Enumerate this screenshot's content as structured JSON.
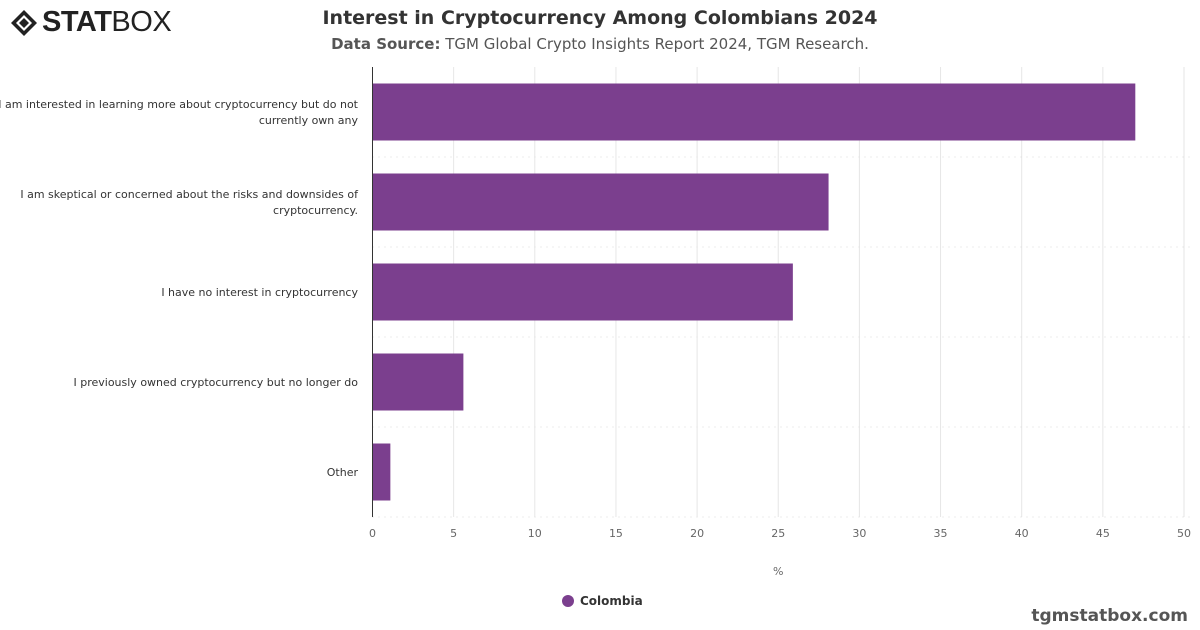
{
  "logo": {
    "text_bold": "STAT",
    "text_light": "BOX"
  },
  "chart_data": {
    "type": "bar",
    "orientation": "horizontal",
    "title": "Interest in Cryptocurrency Among Colombians 2024",
    "subtitle_label": "Data Source:",
    "subtitle": "TGM Global Crypto Insights Report 2024, TGM Research.",
    "categories": [
      [
        "I am interested in learning more about cryptocurrency but do not",
        "currently own any"
      ],
      [
        "I am skeptical or concerned about the risks and downsides of",
        "cryptocurrency."
      ],
      [
        "I have no interest in cryptocurrency"
      ],
      [
        "I previously owned cryptocurrency but no longer do"
      ],
      [
        "Other"
      ]
    ],
    "series": [
      {
        "name": "Colombia",
        "values": [
          47.0,
          28.1,
          25.9,
          5.6,
          1.1
        ],
        "color": "#7b3f8e"
      }
    ],
    "xlabel": "%",
    "xlim": [
      0,
      50
    ],
    "xticks": [
      0,
      5,
      10,
      15,
      20,
      25,
      30,
      35,
      40,
      45,
      50
    ],
    "grid": true,
    "legend": "bottom-center"
  },
  "footer": "tgmstatbox.com"
}
